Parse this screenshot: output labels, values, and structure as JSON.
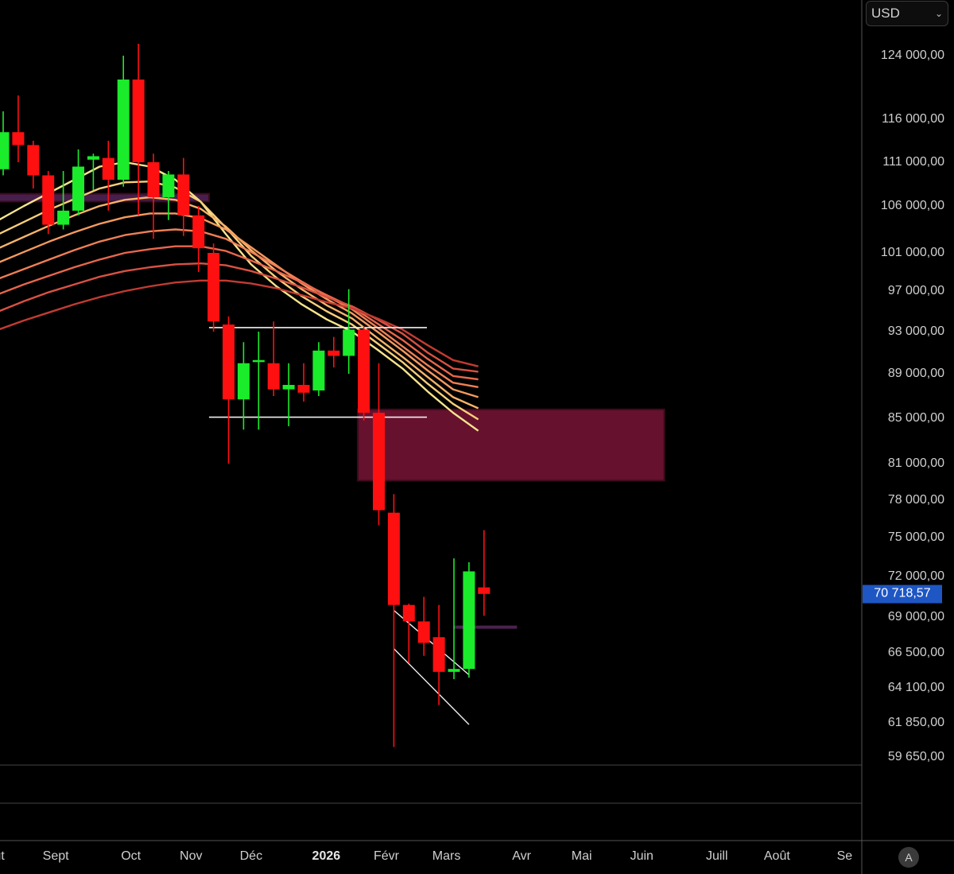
{
  "currency": {
    "selected": "USD",
    "chevron_icon": "chevron-down-icon"
  },
  "last_price": {
    "label": "70 718,57",
    "value": 70718.57,
    "color": "#1e56c4"
  },
  "auto_scale_button": "A",
  "chart_data": {
    "type": "candlestick",
    "title": "",
    "y_ticks": [
      {
        "value": 124000,
        "label": "124 000,00"
      },
      {
        "value": 116000,
        "label": "116 000,00"
      },
      {
        "value": 111000,
        "label": "111 000,00"
      },
      {
        "value": 106000,
        "label": "106 000,00"
      },
      {
        "value": 101000,
        "label": "101 000,00"
      },
      {
        "value": 97000,
        "label": "97 000,00"
      },
      {
        "value": 93000,
        "label": "93 000,00"
      },
      {
        "value": 89000,
        "label": "89 000,00"
      },
      {
        "value": 85000,
        "label": "85 000,00"
      },
      {
        "value": 81000,
        "label": "81 000,00"
      },
      {
        "value": 78000,
        "label": "78 000,00"
      },
      {
        "value": 75000,
        "label": "75 000,00"
      },
      {
        "value": 72000,
        "label": "72 000,00"
      },
      {
        "value": 69000,
        "label": "69 000,00"
      },
      {
        "value": 66500,
        "label": "66 500,00"
      },
      {
        "value": 64100,
        "label": "64 100,00"
      },
      {
        "value": 61850,
        "label": "61 850,00"
      },
      {
        "value": 59650,
        "label": "59 650,00"
      }
    ],
    "x_labels": [
      {
        "label": "oût",
        "week": -0.5
      },
      {
        "label": "Sept",
        "week": 3.5
      },
      {
        "label": "Oct",
        "week": 8.5
      },
      {
        "label": "Nov",
        "week": 12.5
      },
      {
        "label": "Déc",
        "week": 16.5
      },
      {
        "label": "2026",
        "week": 21.5,
        "bold": true
      },
      {
        "label": "Févr",
        "week": 25.5
      },
      {
        "label": "Mars",
        "week": 29.5
      },
      {
        "label": "Avr",
        "week": 34.5
      },
      {
        "label": "Mai",
        "week": 38.5
      },
      {
        "label": "Juin",
        "week": 42.5
      },
      {
        "label": "Juill",
        "week": 47.5
      },
      {
        "label": "Août",
        "week": 51.5
      },
      {
        "label": "Se",
        "week": 56
      }
    ],
    "candles": [
      {
        "o": 110200,
        "h": 117000,
        "l": 109500,
        "c": 114500
      },
      {
        "o": 114500,
        "h": 119000,
        "l": 111000,
        "c": 113000
      },
      {
        "o": 113000,
        "h": 113500,
        "l": 108000,
        "c": 109500
      },
      {
        "o": 109500,
        "h": 110000,
        "l": 103000,
        "c": 104000
      },
      {
        "o": 104000,
        "h": 110000,
        "l": 103500,
        "c": 105500
      },
      {
        "o": 105500,
        "h": 112500,
        "l": 105000,
        "c": 110500
      },
      {
        "o": 111300,
        "h": 112000,
        "l": 107800,
        "c": 111700
      },
      {
        "o": 111500,
        "h": 113500,
        "l": 105500,
        "c": 109000
      },
      {
        "o": 109000,
        "h": 124000,
        "l": 108200,
        "c": 121000
      },
      {
        "o": 121000,
        "h": 125500,
        "l": 105000,
        "c": 111000
      },
      {
        "o": 111000,
        "h": 112000,
        "l": 102500,
        "c": 107000
      },
      {
        "o": 107000,
        "h": 110000,
        "l": 104500,
        "c": 109600
      },
      {
        "o": 109600,
        "h": 111500,
        "l": 102800,
        "c": 105000
      },
      {
        "o": 105000,
        "h": 106000,
        "l": 99000,
        "c": 101500
      },
      {
        "o": 101000,
        "h": 102000,
        "l": 93000,
        "c": 94000
      },
      {
        "o": 93700,
        "h": 94500,
        "l": 81000,
        "c": 86700
      },
      {
        "o": 86700,
        "h": 92000,
        "l": 84000,
        "c": 90000
      },
      {
        "o": 90300,
        "h": 93000,
        "l": 84000,
        "c": 90300
      },
      {
        "o": 90000,
        "h": 94000,
        "l": 87000,
        "c": 87600
      },
      {
        "o": 87600,
        "h": 90000,
        "l": 84300,
        "c": 88000
      },
      {
        "o": 88000,
        "h": 90000,
        "l": 86500,
        "c": 87300
      },
      {
        "o": 87500,
        "h": 92000,
        "l": 87000,
        "c": 91200
      },
      {
        "o": 91200,
        "h": 92500,
        "l": 89600,
        "c": 90700
      },
      {
        "o": 90700,
        "h": 97200,
        "l": 89000,
        "c": 93200
      },
      {
        "o": 93200,
        "h": 93500,
        "l": 84800,
        "c": 85500
      },
      {
        "o": 85500,
        "h": 90000,
        "l": 76000,
        "c": 77200
      },
      {
        "o": 77000,
        "h": 78500,
        "l": 60300,
        "c": 69900
      },
      {
        "o": 69900,
        "h": 70000,
        "l": 65800,
        "c": 68700
      },
      {
        "o": 68700,
        "h": 70500,
        "l": 66300,
        "c": 67200
      },
      {
        "o": 67600,
        "h": 69900,
        "l": 63000,
        "c": 65200
      },
      {
        "o": 65200,
        "h": 73400,
        "l": 64700,
        "c": 65400
      },
      {
        "o": 65400,
        "h": 73100,
        "l": 64800,
        "c": 72400
      },
      {
        "o": 71200,
        "h": 75600,
        "l": 69100,
        "c": 70718.57
      }
    ],
    "ribbon": {
      "colors": [
        "#f7e58c",
        "#f9cf7a",
        "#f8b36b",
        "#f59a5f",
        "#f07f56",
        "#e8674c",
        "#d95143",
        "#c23b32"
      ],
      "lines": [
        {
          "start": 0,
          "values": [
            104500,
            106000,
            107500,
            109000,
            110500,
            111000,
            110500,
            109000,
            106500,
            103000,
            99800,
            97500,
            95700,
            94200,
            93000,
            91300,
            89500,
            87400,
            85500,
            83900
          ]
        },
        {
          "start": 0,
          "values": [
            103000,
            104300,
            105600,
            106800,
            108000,
            108700,
            108800,
            108100,
            106500,
            103700,
            100700,
            98400,
            96500,
            95000,
            93700,
            91900,
            90100,
            88100,
            86300,
            84900
          ]
        },
        {
          "start": 0,
          "values": [
            101500,
            102700,
            103900,
            105000,
            106000,
            106700,
            107000,
            106700,
            105700,
            103800,
            101300,
            99100,
            97200,
            95600,
            94300,
            92400,
            90600,
            88700,
            86900,
            85900
          ]
        },
        {
          "start": 0,
          "values": [
            100000,
            101100,
            102200,
            103200,
            104100,
            104800,
            105200,
            105200,
            104700,
            103500,
            101600,
            99700,
            97800,
            96200,
            94800,
            93000,
            91200,
            89300,
            87600,
            86900
          ]
        },
        {
          "start": 0,
          "values": [
            98300,
            99300,
            100300,
            101300,
            102200,
            102900,
            103300,
            103500,
            103300,
            102500,
            101100,
            99600,
            98000,
            96500,
            95200,
            93400,
            91600,
            89800,
            88200,
            87800
          ]
        },
        {
          "start": 0,
          "values": [
            96700,
            97700,
            98600,
            99500,
            100300,
            101000,
            101400,
            101700,
            101700,
            101200,
            100200,
            99100,
            97900,
            96600,
            95400,
            93800,
            92200,
            90400,
            88800,
            88500
          ]
        },
        {
          "start": 0,
          "values": [
            95000,
            96000,
            96900,
            97700,
            98500,
            99100,
            99500,
            99800,
            99900,
            99700,
            99100,
            98300,
            97400,
            96400,
            95500,
            94200,
            92800,
            91000,
            89500,
            89200
          ]
        },
        {
          "start": 0,
          "values": [
            93200,
            94100,
            94900,
            95700,
            96400,
            97000,
            97500,
            97900,
            98100,
            98100,
            97800,
            97300,
            96600,
            95900,
            95300,
            94300,
            93200,
            91700,
            90300,
            89700
          ]
        }
      ]
    },
    "zones": [
      {
        "name": "supply-zone",
        "from_week": 23.6,
        "to_week": 44,
        "top": 85800,
        "bottom": 79600,
        "color": "#6b1230"
      },
      {
        "name": "old-zone",
        "from_week": -1,
        "to_week": 13.7,
        "top": 107400,
        "bottom": 106500,
        "color": "#4b2150"
      }
    ],
    "range_lines": [
      {
        "value": 93400,
        "from_week": 13.7,
        "to_week": 28.2
      },
      {
        "value": 85100,
        "from_week": 13.7,
        "to_week": 28.2
      }
    ],
    "channel_lines": [
      {
        "w1": 26.0,
        "v1": 69500,
        "w2": 31.0,
        "v2": 65000
      },
      {
        "w1": 26.0,
        "v1": 66800,
        "w2": 31.0,
        "v2": 61750
      }
    ],
    "marker_line": {
      "value": 68300,
      "from_week": 30.0,
      "to_week": 34.2,
      "color": "#4b2150"
    },
    "up_color": "#1aeb2a",
    "down_color": "#ff1010",
    "grid": false
  }
}
